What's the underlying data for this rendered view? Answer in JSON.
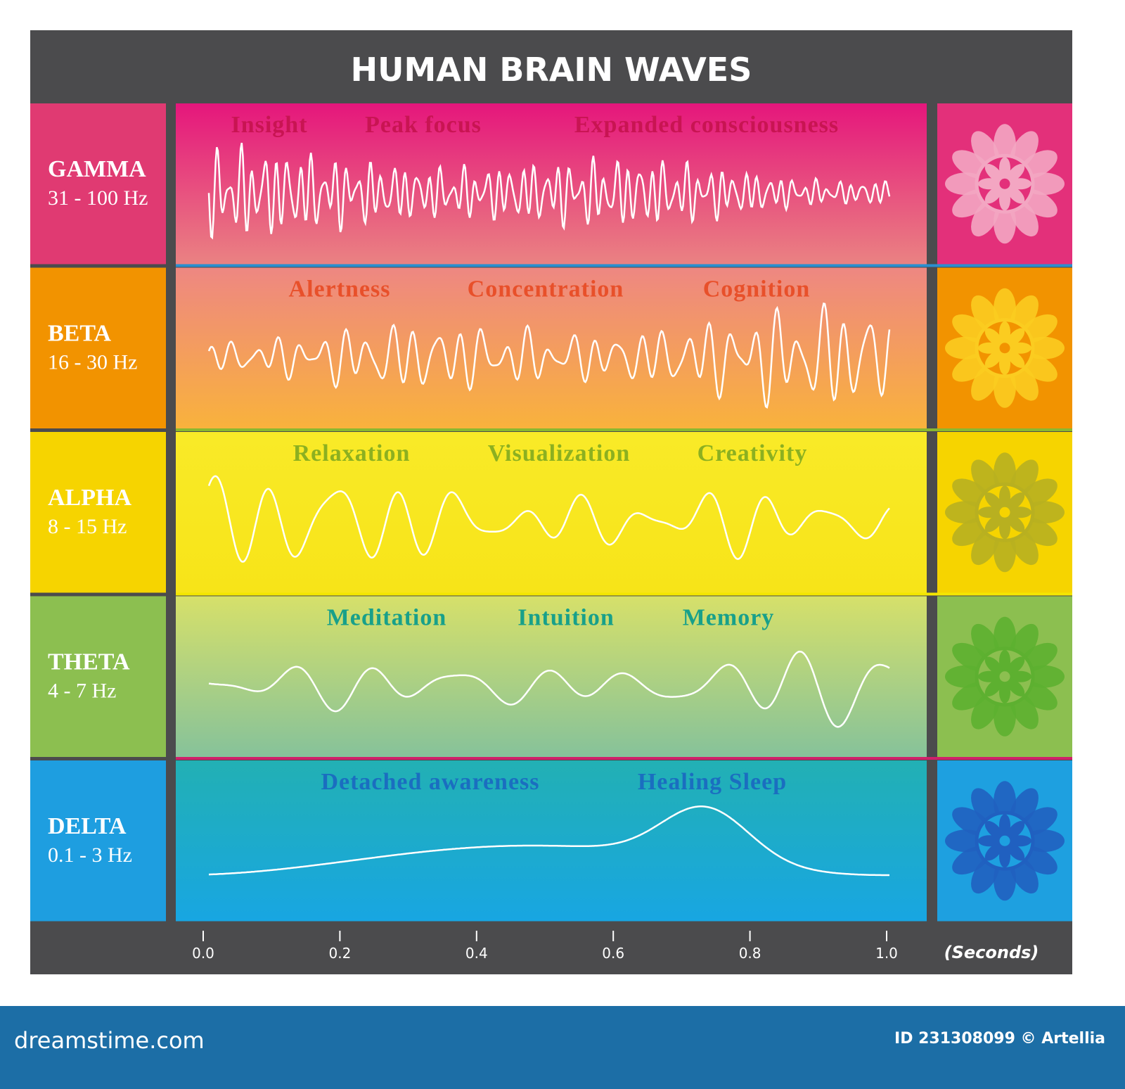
{
  "title": "HUMAN BRAIN WAVES",
  "bands": [
    {
      "name": "GAMMA",
      "range": "31 - 100 Hz",
      "keywords": [
        "Insight",
        "Peak focus",
        "Expanded consciousness"
      ]
    },
    {
      "name": "BETA",
      "range": "16 - 30 Hz",
      "keywords": [
        "Alertness",
        "Concentration",
        "Cognition"
      ]
    },
    {
      "name": "ALPHA",
      "range": "8 - 15 Hz",
      "keywords": [
        "Relaxation",
        "Visualization",
        "Creativity"
      ]
    },
    {
      "name": "THETA",
      "range": "4 - 7 Hz",
      "keywords": [
        "Meditation",
        "Intuition",
        "Memory"
      ]
    },
    {
      "name": "DELTA",
      "range": "0.1 - 3 Hz",
      "keywords": [
        "Detached awareness",
        "Healing Sleep"
      ]
    }
  ],
  "axis": {
    "ticks": [
      "0.0",
      "0.2",
      "0.4",
      "0.6",
      "0.8",
      "1.0"
    ],
    "unit": "(Seconds)"
  },
  "footer": {
    "site": "dreamstime.com",
    "credit": "ID 231308099 © Artellia"
  }
}
